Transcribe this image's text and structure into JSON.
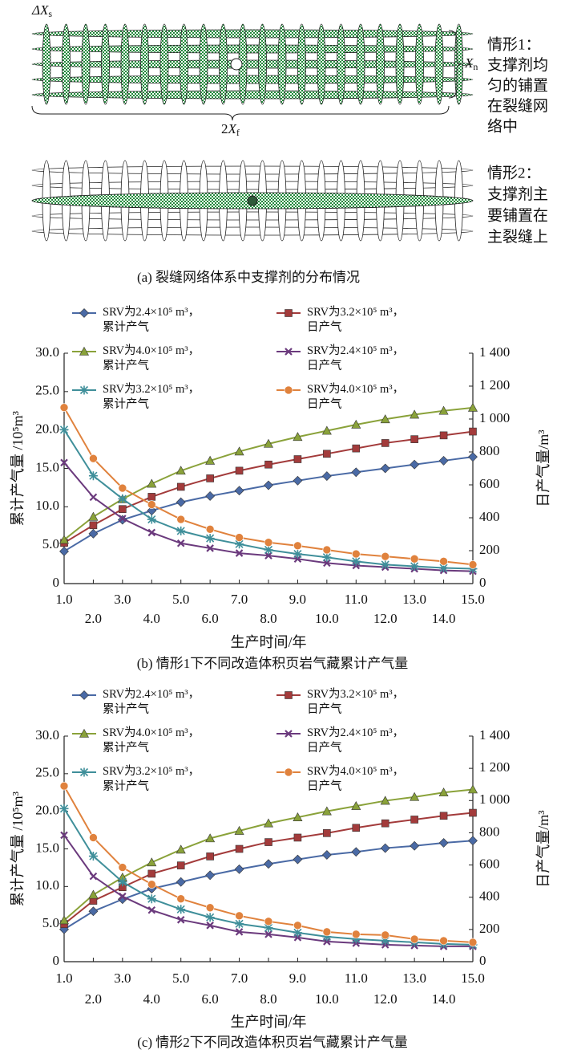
{
  "diagram": {
    "delta_x": "ΔX",
    "delta_x_sub": "s",
    "xn": "X",
    "xn_sub": "n",
    "xf_prefix": "2",
    "xf": "X",
    "xf_sub": "f",
    "case1": [
      "情形1：",
      "支撑剂均",
      "匀的铺置",
      "在裂缝网",
      "络中"
    ],
    "case2": [
      "情形2：",
      "支撑剂主",
      "要铺置在",
      "主裂缝上"
    ],
    "caption": "(a) 裂缝网络体系中支撑剂的分布情况"
  },
  "chart_data": [
    {
      "type": "line",
      "caption": "(b) 情形1下不同改造体积页岩气藏累计产气量",
      "xlabel": "生产时间/年",
      "ylabel": "累计产气量 /10⁵m³",
      "y2label": "日产气量/m³",
      "x": [
        1,
        2,
        3,
        4,
        5,
        6,
        7,
        8,
        9,
        10,
        11,
        12,
        13,
        14,
        15
      ],
      "xlim": [
        1,
        15
      ],
      "xticks": [
        {
          "value": 1,
          "label": "1.0"
        },
        {
          "value": 2,
          "label": "2.0"
        },
        {
          "value": 3,
          "label": "3.0"
        },
        {
          "value": 4,
          "label": "4.0"
        },
        {
          "value": 5,
          "label": "5.0"
        },
        {
          "value": 6,
          "label": "6.0"
        },
        {
          "value": 7,
          "label": "7.0"
        },
        {
          "value": 8,
          "label": "8.0"
        },
        {
          "value": 9,
          "label": "9.0"
        },
        {
          "value": 10,
          "label": "10.0"
        },
        {
          "value": 11,
          "label": "11.0"
        },
        {
          "value": 12,
          "label": "12.0"
        },
        {
          "value": 13,
          "label": "13.0"
        },
        {
          "value": 14,
          "label": "14.0"
        },
        {
          "value": 15,
          "label": "15.0"
        }
      ],
      "ylim": [
        0,
        30
      ],
      "yticks": [
        0,
        {
          "value": 5,
          "label": "5.0"
        },
        {
          "value": 10,
          "label": "10.0"
        },
        {
          "value": 15,
          "label": "15.0"
        },
        {
          "value": 20,
          "label": "20.0"
        },
        {
          "value": 25,
          "label": "25.0"
        },
        {
          "value": 30,
          "label": "30.0"
        }
      ],
      "y2lim": [
        0,
        1400
      ],
      "y2ticks": [
        0,
        200,
        400,
        600,
        800,
        {
          "value": 1000,
          "label": "1 000"
        },
        {
          "value": 1200,
          "label": "1 200"
        },
        {
          "value": 1400,
          "label": "1 400"
        }
      ],
      "series": [
        {
          "name": "SRV为2.4×10⁵ m³，\n累计产气",
          "color": "#4a6aa5",
          "marker": "diamond",
          "values": [
            4.2,
            6.5,
            8.3,
            9.5,
            10.6,
            11.4,
            12.1,
            12.8,
            13.4,
            14.0,
            14.5,
            15.0,
            15.5,
            16.0,
            16.5
          ]
        },
        {
          "name": "SRV为3.2×10⁵ m³，\n日产气",
          "color": "#a33b3b",
          "marker": "square",
          "values": [
            5.3,
            7.6,
            9.7,
            11.3,
            12.6,
            13.7,
            14.7,
            15.5,
            16.2,
            16.9,
            17.6,
            18.3,
            18.8,
            19.3,
            19.8
          ]
        },
        {
          "name": "SRV为4.0×10⁵ m³，\n累计产气",
          "color": "#8aa23a",
          "marker": "triangle",
          "values": [
            5.7,
            8.7,
            11.0,
            13.0,
            14.7,
            16.0,
            17.2,
            18.2,
            19.1,
            19.9,
            20.7,
            21.4,
            22.0,
            22.5,
            22.9
          ]
        },
        {
          "name": "SRV为2.4×10⁵ m³，\n日产气",
          "color": "#6b3a7d",
          "marker": "x",
          "axis": "y2",
          "values": [
            735,
            525,
            395,
            310,
            245,
            215,
            185,
            170,
            150,
            125,
            110,
            100,
            90,
            80,
            75
          ]
        },
        {
          "name": "SRV为3.2×10⁵ m³，\n累计产气",
          "color": "#3f8f9a",
          "marker": "asterisk",
          "axis": "y2",
          "values": [
            935,
            655,
            515,
            390,
            320,
            275,
            240,
            205,
            180,
            160,
            135,
            115,
            105,
            95,
            90
          ]
        },
        {
          "name": "SRV为4.0×10⁵ m³，\n日产气",
          "color": "#e0823d",
          "marker": "circle",
          "axis": "y2",
          "values": [
            1070,
            760,
            580,
            480,
            390,
            330,
            280,
            250,
            230,
            205,
            180,
            165,
            150,
            135,
            115
          ]
        }
      ]
    },
    {
      "type": "line",
      "caption": "(c) 情形2下不同改造体积页岩气藏累计产气量",
      "xlabel": "生产时间/年",
      "ylabel": "累计产气量 /10⁵m³",
      "y2label": "日产气量/m³",
      "x": [
        1,
        2,
        3,
        4,
        5,
        6,
        7,
        8,
        9,
        10,
        11,
        12,
        13,
        14,
        15
      ],
      "xlim": [
        1,
        15
      ],
      "xticks": [
        {
          "value": 1,
          "label": "1.0"
        },
        {
          "value": 2,
          "label": "2.0"
        },
        {
          "value": 3,
          "label": "3.0"
        },
        {
          "value": 4,
          "label": "4.0"
        },
        {
          "value": 5,
          "label": "5.0"
        },
        {
          "value": 6,
          "label": "6.0"
        },
        {
          "value": 7,
          "label": "7.0"
        },
        {
          "value": 8,
          "label": "8.0"
        },
        {
          "value": 9,
          "label": "9.0"
        },
        {
          "value": 10,
          "label": "10.0"
        },
        {
          "value": 11,
          "label": "11.0"
        },
        {
          "value": 12,
          "label": "12.0"
        },
        {
          "value": 13,
          "label": "13.0"
        },
        {
          "value": 14,
          "label": "14.0"
        },
        {
          "value": 15,
          "label": "15.0"
        }
      ],
      "ylim": [
        0,
        30
      ],
      "yticks": [
        0,
        {
          "value": 5,
          "label": "5.0"
        },
        {
          "value": 10,
          "label": "10.0"
        },
        {
          "value": 15,
          "label": "15.0"
        },
        {
          "value": 20,
          "label": "20.0"
        },
        {
          "value": 25,
          "label": "25.0"
        },
        {
          "value": 30,
          "label": "30.0"
        }
      ],
      "y2lim": [
        0,
        1400
      ],
      "y2ticks": [
        0,
        200,
        400,
        600,
        800,
        {
          "value": 1000,
          "label": "1 000"
        },
        {
          "value": 1200,
          "label": "1 200"
        },
        {
          "value": 1400,
          "label": "1 400"
        }
      ],
      "series": [
        {
          "name": "SRV为2.4×10⁵ m³，\n累计产气",
          "color": "#4a6aa5",
          "marker": "diamond",
          "values": [
            4.3,
            6.7,
            8.3,
            9.7,
            10.6,
            11.5,
            12.3,
            13.0,
            13.6,
            14.2,
            14.6,
            15.1,
            15.4,
            15.8,
            16.1
          ]
        },
        {
          "name": "SRV为3.2×10⁵ m³，\n日产气",
          "color": "#a33b3b",
          "marker": "square",
          "values": [
            5.0,
            8.1,
            9.9,
            11.7,
            12.8,
            14.0,
            15.0,
            15.9,
            16.5,
            17.1,
            17.8,
            18.4,
            18.9,
            19.4,
            19.8
          ]
        },
        {
          "name": "SRV为4.0×10⁵ m³，\n累计产气",
          "color": "#8aa23a",
          "marker": "triangle",
          "values": [
            5.5,
            8.9,
            11.2,
            13.2,
            14.9,
            16.4,
            17.4,
            18.4,
            19.2,
            20.0,
            20.7,
            21.4,
            21.9,
            22.5,
            22.9
          ]
        },
        {
          "name": "SRV为2.4×10⁵ m³，\n日产气",
          "color": "#6b3a7d",
          "marker": "x",
          "axis": "y2",
          "values": [
            785,
            530,
            405,
            320,
            260,
            225,
            185,
            170,
            150,
            125,
            115,
            105,
            100,
            95,
            95
          ]
        },
        {
          "name": "SRV为3.2×10⁵ m³，\n累计产气",
          "color": "#3f8f9a",
          "marker": "asterisk",
          "axis": "y2",
          "values": [
            950,
            655,
            495,
            390,
            325,
            275,
            235,
            210,
            180,
            155,
            140,
            130,
            120,
            110,
            105
          ]
        },
        {
          "name": "SRV为4.0×10⁵ m³，\n日产气",
          "color": "#e0823d",
          "marker": "circle",
          "axis": "y2",
          "values": [
            1090,
            770,
            585,
            480,
            390,
            335,
            285,
            250,
            225,
            185,
            170,
            165,
            140,
            130,
            120
          ]
        }
      ]
    }
  ]
}
